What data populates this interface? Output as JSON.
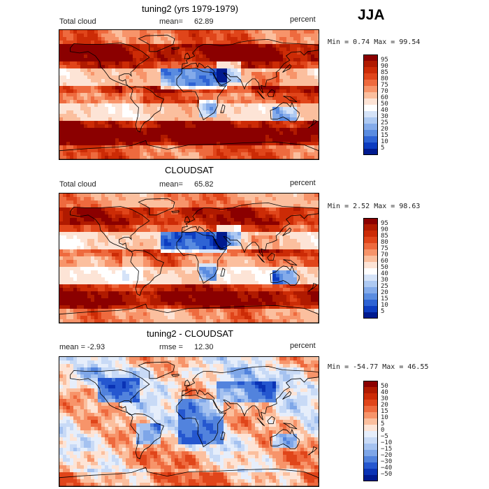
{
  "season": "JJA",
  "units": "percent",
  "panels": [
    {
      "title": "tuning2 (yrs 1979-1979)",
      "left_label": "Total cloud",
      "mean_label": "mean=",
      "mean_value": "62.89",
      "right_label": "percent",
      "minmax": "Min =   0.74 Max =  99.54"
    },
    {
      "title": "CLOUDSAT",
      "left_label": "Total cloud",
      "mean_label": "mean=",
      "mean_value": "65.82",
      "right_label": "percent",
      "minmax": "Min =   2.52 Max =  98.63"
    },
    {
      "title": "tuning2 - CLOUDSAT",
      "left_label": "mean =  -2.93",
      "mean_label": "rmse =",
      "mean_value": "12.30",
      "right_label": "percent",
      "minmax": "Min = -54.77 Max =  46.55"
    }
  ],
  "chart_data": [
    {
      "type": "heatmap",
      "title": "tuning2 (yrs 1979-1979)",
      "variable": "Total cloud",
      "units": "percent",
      "mean": 62.89,
      "min": 0.74,
      "max": 99.54,
      "colorbar_levels": [
        "95",
        "90",
        "85",
        "80",
        "75",
        "70",
        "60",
        "50",
        "40",
        "30",
        "25",
        "20",
        "15",
        "10",
        "5"
      ],
      "colorbar_colors": [
        "#8b0000",
        "#b01a00",
        "#cc2b06",
        "#e0451a",
        "#ee6a3e",
        "#f7946a",
        "#fbbf9e",
        "#fde4d6",
        "#ffffff",
        "#d5e3f8",
        "#adc9f2",
        "#84abea",
        "#5a8ce0",
        "#2e63d4",
        "#0d3cc0",
        "#001a8f"
      ]
    },
    {
      "type": "heatmap",
      "title": "CLOUDSAT",
      "variable": "Total cloud",
      "units": "percent",
      "mean": 65.82,
      "min": 2.52,
      "max": 98.63,
      "colorbar_levels": [
        "95",
        "90",
        "85",
        "80",
        "75",
        "70",
        "60",
        "50",
        "40",
        "30",
        "25",
        "20",
        "15",
        "10",
        "5"
      ],
      "colorbar_colors": [
        "#8b0000",
        "#b01a00",
        "#cc2b06",
        "#e0451a",
        "#ee6a3e",
        "#f7946a",
        "#fbbf9e",
        "#fde4d6",
        "#ffffff",
        "#d5e3f8",
        "#adc9f2",
        "#84abea",
        "#5a8ce0",
        "#2e63d4",
        "#0d3cc0",
        "#001a8f"
      ]
    },
    {
      "type": "heatmap",
      "title": "tuning2 - CLOUDSAT",
      "units": "percent",
      "mean": -2.93,
      "rmse": 12.3,
      "min": -54.77,
      "max": 46.55,
      "colorbar_levels": [
        "50",
        "40",
        "30",
        "20",
        "15",
        "10",
        "5",
        "0",
        "−5",
        "−10",
        "−15",
        "−20",
        "−30",
        "−40",
        "−50"
      ],
      "colorbar_colors": [
        "#8b0000",
        "#b01a00",
        "#cc2b06",
        "#e0451a",
        "#ee6a3e",
        "#f7946a",
        "#fbbf9e",
        "#fde4d6",
        "#e6eefb",
        "#c8daf6",
        "#a5c2f0",
        "#7ea6e8",
        "#5283dd",
        "#2557cf",
        "#0a33b5",
        "#001a8f"
      ]
    }
  ]
}
